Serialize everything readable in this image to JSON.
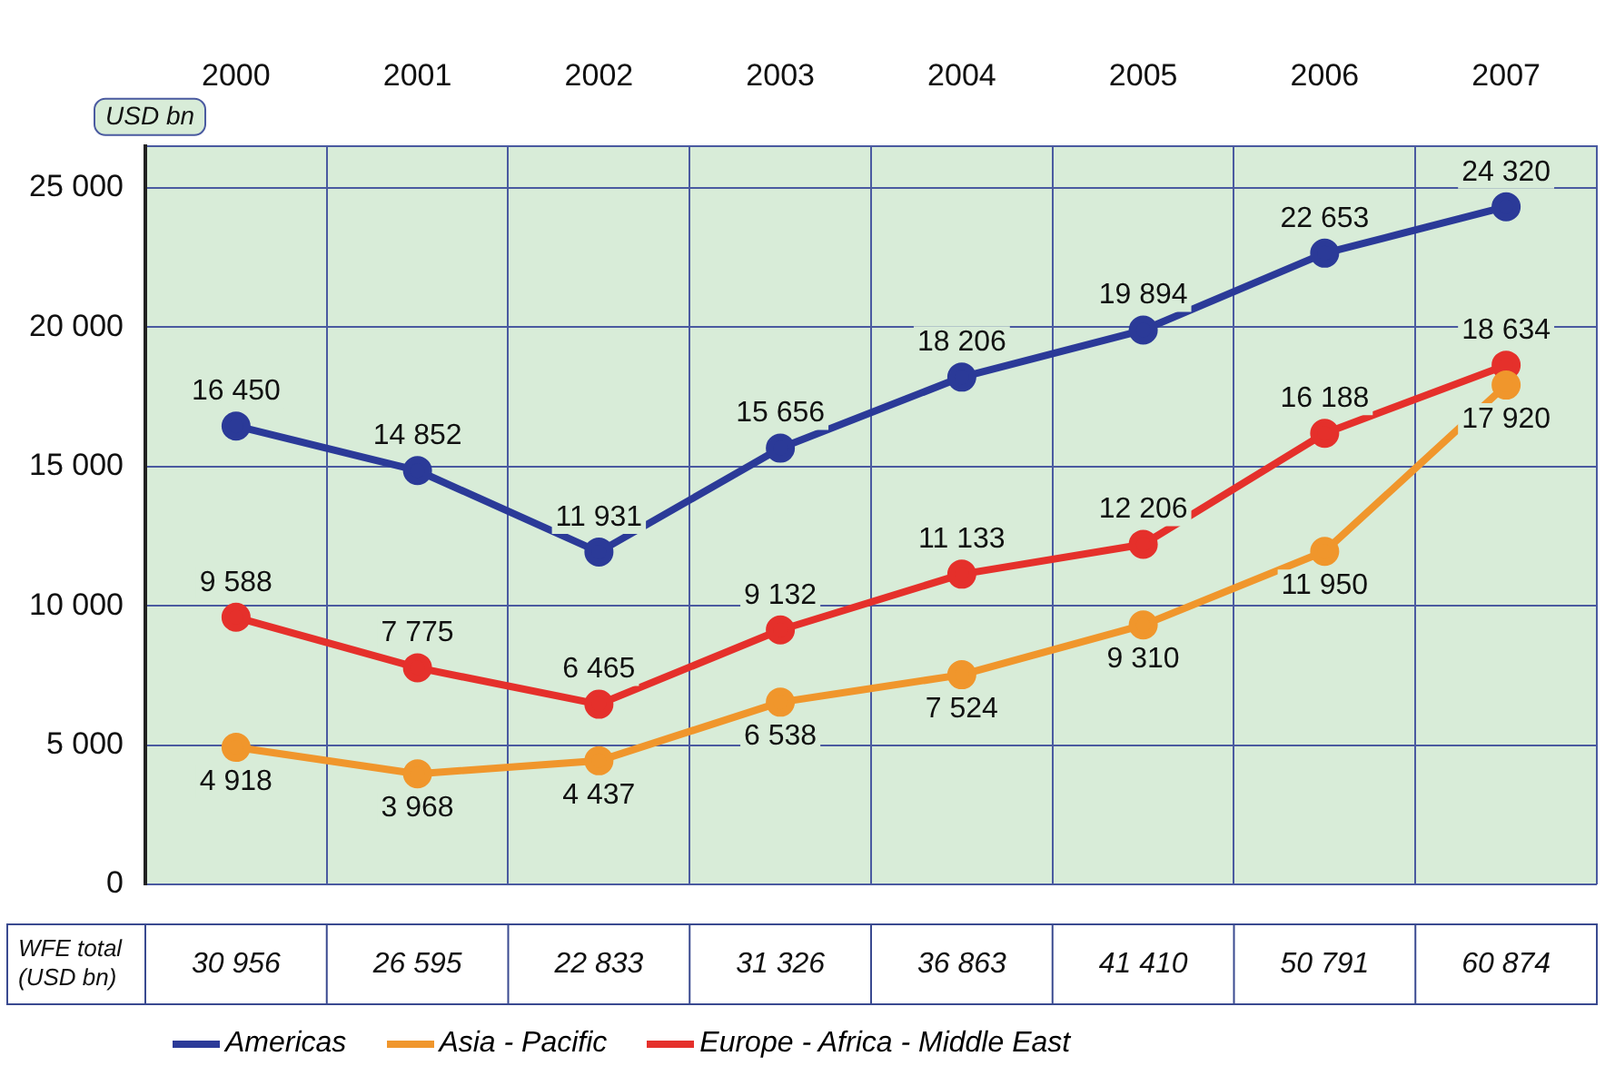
{
  "chart_data": {
    "type": "line",
    "ylabel": "USD bn",
    "categories": [
      "2000",
      "2001",
      "2002",
      "2003",
      "2004",
      "2005",
      "2006",
      "2007"
    ],
    "series": [
      {
        "name": "Americas",
        "color": "#2b3a98",
        "values": [
          16450,
          14852,
          11931,
          15656,
          18206,
          19894,
          22653,
          24320
        ],
        "value_labels": [
          "16 450",
          "14 852",
          "11 931",
          "15 656",
          "18 206",
          "19 894",
          "22 653",
          "24 320"
        ]
      },
      {
        "name": "Asia - Pacific",
        "color": "#f0962c",
        "values": [
          4918,
          3968,
          4437,
          6538,
          7524,
          9310,
          11950,
          17920
        ],
        "value_labels": [
          "4 918",
          "3 968",
          "4 437",
          "6 538",
          "7 524",
          "9 310",
          "11 950",
          "17 920"
        ]
      },
      {
        "name": "Europe - Africa - Middle East",
        "color": "#e5302b",
        "values": [
          9588,
          7775,
          6465,
          9132,
          11133,
          12206,
          16188,
          18634
        ],
        "value_labels": [
          "9 588",
          "7 775",
          "6 465",
          "9 132",
          "11 133",
          "12 206",
          "16 188",
          "18 634"
        ]
      }
    ],
    "ylim": [
      0,
      26500
    ],
    "yticks": [
      {
        "value": 0,
        "label": "0"
      },
      {
        "value": 5000,
        "label": "5 000"
      },
      {
        "value": 10000,
        "label": "10 000"
      },
      {
        "value": 15000,
        "label": "15 000"
      },
      {
        "value": 20000,
        "label": "20 000"
      },
      {
        "value": 25000,
        "label": "25 000"
      }
    ],
    "grid": true,
    "marker": "circle",
    "legend": "bottom",
    "totals": [
      "30 956",
      "26 595",
      "22 833",
      "31 326",
      "36 863",
      "41 410",
      "50 791",
      "60 874"
    ],
    "annotations": [
      "WFE total (USD bn)"
    ]
  }
}
